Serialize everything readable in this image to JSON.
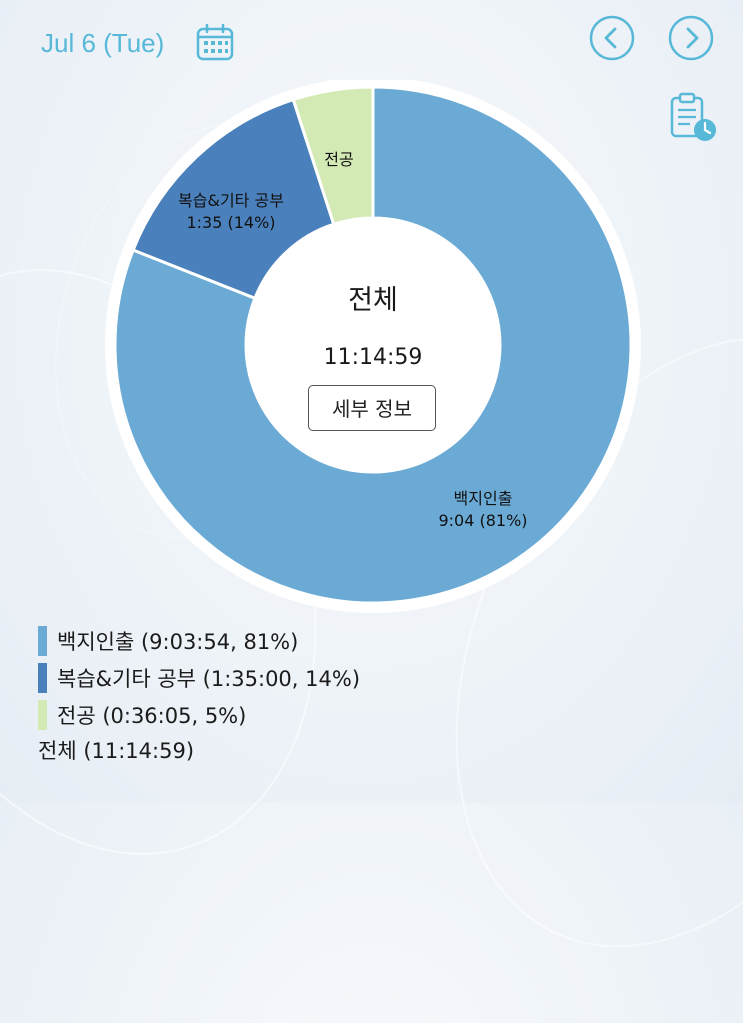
{
  "header": {
    "date": "Jul 6 (Tue)"
  },
  "icons": {
    "calendar": "calendar-icon",
    "prev": "chevron-left-icon",
    "next": "chevron-right-icon",
    "report": "clipboard-clock-icon"
  },
  "colors": {
    "accent": "#57b8d8",
    "series": [
      "#6aaad5",
      "#4a80bb",
      "#d4eab5"
    ]
  },
  "chart_data": {
    "type": "pie",
    "style": "donut",
    "center_title": "전체",
    "center_time": "11:14:59",
    "detail_button": "세부 정보",
    "slices": [
      {
        "name": "백지인출",
        "value": 81,
        "duration": "9:03:54",
        "label_line1": "백지인출",
        "label_line2": "9:04 (81%)",
        "color": "#6aaad5"
      },
      {
        "name": "복습&기타 공부",
        "value": 14,
        "duration": "1:35:00",
        "label_line1": "복습&기타 공부",
        "label_line2": "1:35 (14%)",
        "color": "#4a80bb"
      },
      {
        "name": "전공",
        "value": 5,
        "duration": "0:36:05",
        "label_line1": "전공",
        "label_line2": "",
        "color": "#d4eab5"
      }
    ]
  },
  "legend": {
    "items": [
      {
        "text": "백지인출 (9:03:54, 81%)",
        "color": "#6aaad5"
      },
      {
        "text": "복습&기타 공부 (1:35:00, 14%)",
        "color": "#4a80bb"
      },
      {
        "text": "전공 (0:36:05, 5%)",
        "color": "#d4eab5"
      }
    ],
    "total": "전체 (11:14:59)"
  }
}
